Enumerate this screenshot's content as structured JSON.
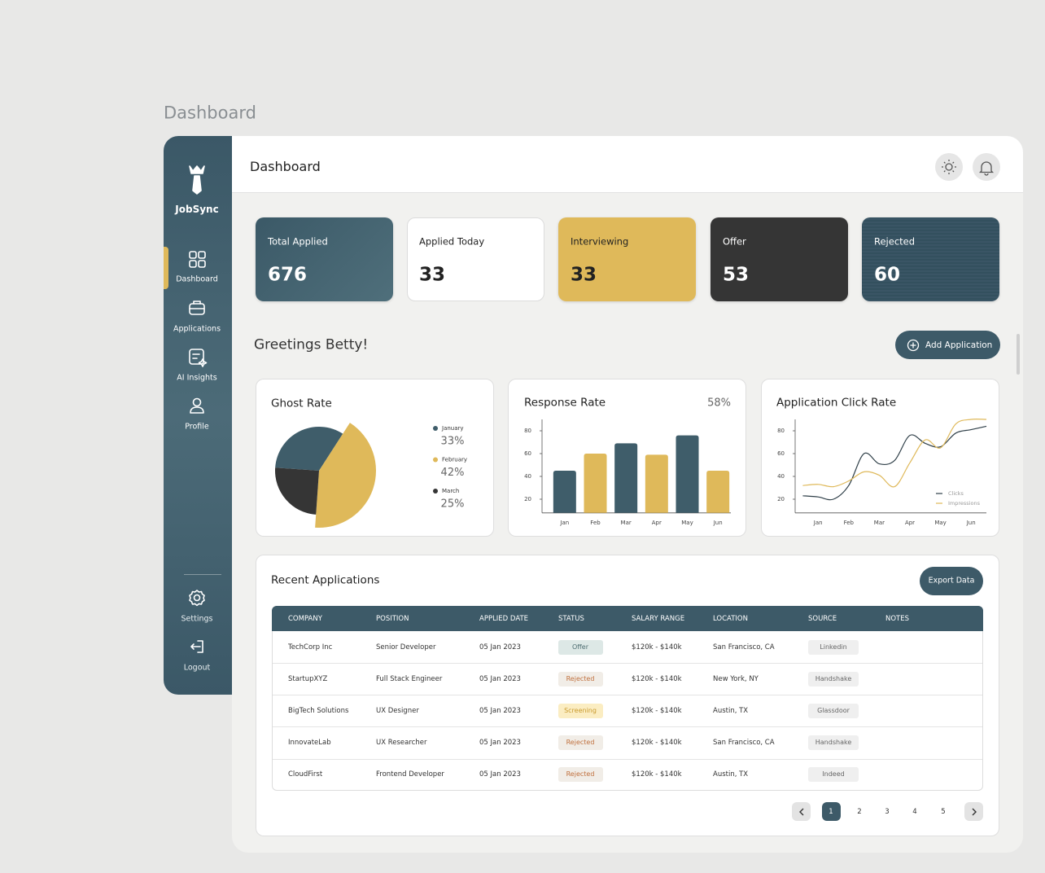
{
  "page_title": "Dashboard",
  "sidebar": {
    "brand": "JobSync",
    "nav": [
      "Dashboard",
      "Applications",
      "AI Insights",
      "Profile"
    ],
    "bottom_nav": [
      "Settings",
      "Logout"
    ]
  },
  "header": {
    "title": "Dashboard"
  },
  "stats": [
    {
      "label": "Total Applied",
      "value": 676
    },
    {
      "label": "Applied Today",
      "value": 33
    },
    {
      "label": "Interviewing",
      "value": 33
    },
    {
      "label": "Offer",
      "value": 53
    },
    {
      "label": "Rejected",
      "value": 60
    }
  ],
  "greeting": "Greetings Betty!",
  "add_button": "Add Application",
  "charts": [
    {
      "type": "pie",
      "title": "Ghost Rate",
      "categories": [
        "January",
        "February",
        "March"
      ],
      "values": [
        33,
        42,
        25
      ],
      "value_labels": [
        "33%",
        "42%",
        "25%"
      ],
      "colors": [
        "#3f5d6a",
        "#dfb95a",
        "#353535"
      ]
    },
    {
      "type": "bar",
      "title": "Response Rate",
      "annotation": "58%",
      "categories": [
        "Jan",
        "Feb",
        "Mar",
        "Apr",
        "May",
        "Jun"
      ],
      "values": [
        45,
        60,
        69,
        59,
        76,
        45
      ],
      "colors": [
        "#3f5d6a",
        "#dfb95a",
        "#3f5d6a",
        "#dfb95a",
        "#3f5d6a",
        "#dfb95a"
      ],
      "ylim": [
        8,
        92
      ],
      "yticks": [
        20,
        40,
        60,
        80
      ]
    },
    {
      "type": "line",
      "title": "Application Click Rate",
      "categories": [
        null,
        "Jan",
        null,
        "Feb",
        null,
        "Mar",
        null,
        "Apr",
        null,
        "May",
        null,
        "Jun",
        null
      ],
      "series": [
        {
          "name": "Clicks",
          "color": "#2f3f48",
          "values": [
            23,
            22,
            20,
            32,
            60,
            51,
            54,
            76,
            69,
            66,
            78,
            81,
            84
          ]
        },
        {
          "name": "Impressions",
          "color": "#dfb95a",
          "values": [
            32,
            33,
            31,
            36,
            44,
            41,
            31,
            52,
            72,
            65,
            86,
            90,
            90
          ]
        }
      ],
      "ylim": [
        8,
        92
      ],
      "yticks": [
        20,
        40,
        60,
        80
      ]
    }
  ],
  "table": {
    "title": "Recent Applications",
    "export_button": "Export Data",
    "columns": [
      "COMPANY",
      "POSITION",
      "APPLIED DATE",
      "STATUS",
      "SALARY RANGE",
      "LOCATION",
      "SOURCE",
      "NOTES"
    ],
    "rows": [
      [
        "TechCorp Inc",
        "Senior Developer",
        "05 Jan 2023",
        "Offer",
        "$120k - $140k",
        "San Francisco, CA",
        "Linkedin"
      ],
      [
        "StartupXYZ",
        "Full Stack Engineer",
        "05 Jan 2023",
        "Rejected",
        "$120k - $140k",
        "New York, NY",
        "Handshake"
      ],
      [
        "BigTech Solutions",
        "UX Designer",
        "05 Jan 2023",
        "Screening",
        "$120k - $140k",
        "Austin, TX",
        "Glassdoor"
      ],
      [
        "InnovateLab",
        "UX Researcher",
        "05 Jan 2023",
        "Rejected",
        "$120k - $140k",
        "San Francisco, CA",
        "Handshake"
      ],
      [
        "CloudFirst",
        "Frontend Developer",
        "05 Jan 2023",
        "Rejected",
        "$120k - $140k",
        "Austin, TX",
        "Indeed"
      ]
    ]
  },
  "pagination": [
    1,
    2,
    3,
    4,
    5
  ]
}
